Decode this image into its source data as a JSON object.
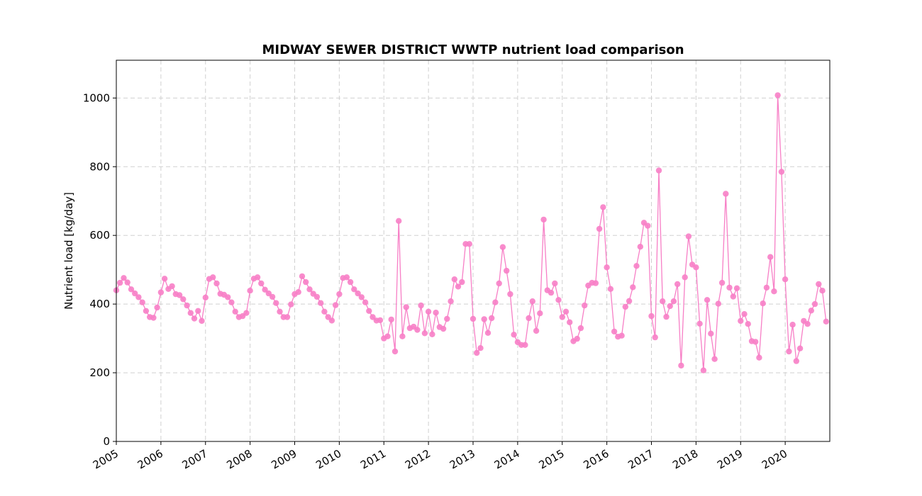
{
  "chart_data": {
    "type": "line",
    "title": "MIDWAY SEWER DISTRICT WWTP nutrient load comparison",
    "xlabel": "",
    "ylabel": "Nutrient load [kg/day]",
    "ylim": [
      0,
      1110
    ],
    "xlim": [
      "2005-01",
      "2021-01"
    ],
    "yticks": [
      0,
      200,
      400,
      600,
      800,
      1000
    ],
    "xticks": [
      "2005",
      "2006",
      "2007",
      "2008",
      "2009",
      "2010",
      "2011",
      "2012",
      "2013",
      "2014",
      "2015",
      "2016",
      "2017",
      "2018",
      "2019",
      "2020"
    ],
    "grid": true,
    "color": "#f77fc6",
    "marker": "circle",
    "series": [
      {
        "x_start": "2005-01",
        "x_step": "1 month",
        "values": [
          440,
          462,
          476,
          463,
          443,
          431,
          420,
          405,
          380,
          362,
          360,
          390,
          434,
          474,
          444,
          452,
          429,
          426,
          414,
          396,
          374,
          358,
          380,
          351,
          419,
          473,
          478,
          460,
          430,
          427,
          420,
          405,
          378,
          362,
          365,
          374,
          439,
          474,
          478,
          460,
          442,
          431,
          421,
          403,
          378,
          362,
          362,
          399,
          429,
          435,
          481,
          464,
          443,
          430,
          421,
          403,
          378,
          362,
          352,
          397,
          429,
          476,
          478,
          464,
          443,
          431,
          420,
          405,
          380,
          362,
          352,
          353,
          300,
          306,
          355,
          262,
          642,
          306,
          391,
          330,
          334,
          325,
          396,
          315,
          378,
          312,
          375,
          333,
          328,
          357,
          408,
          472,
          451,
          464,
          575,
          575,
          357,
          258,
          272,
          356,
          316,
          359,
          405,
          460,
          566,
          497,
          429,
          311,
          289,
          281,
          281,
          359,
          408,
          322,
          373,
          646,
          440,
          433,
          460,
          412,
          362,
          378,
          347,
          292,
          299,
          330,
          396,
          454,
          462,
          461,
          619,
          682,
          507,
          444,
          320,
          305,
          308,
          392,
          409,
          449,
          511,
          567,
          637,
          628,
          365,
          303,
          789,
          408,
          363,
          394,
          408,
          458,
          221,
          478,
          597,
          515,
          507,
          343,
          207,
          412,
          314,
          240,
          401,
          462,
          721,
          448,
          422,
          446,
          351,
          371,
          342,
          292,
          290,
          244,
          402,
          448,
          537,
          437,
          1008,
          785,
          472,
          262,
          340,
          234,
          271,
          351,
          342,
          381,
          400,
          458,
          439,
          349
        ]
      }
    ]
  }
}
